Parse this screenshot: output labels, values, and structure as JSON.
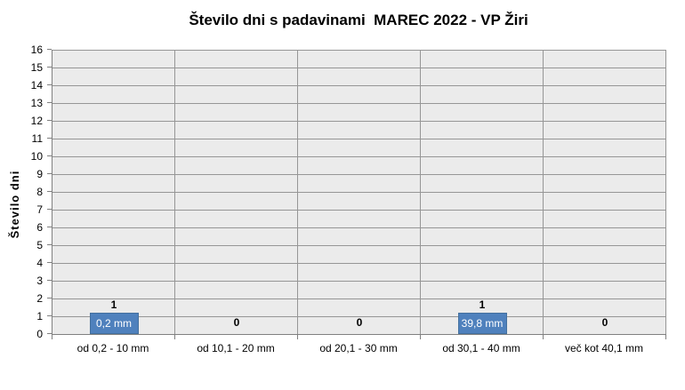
{
  "chart_data": {
    "type": "bar",
    "title": "Število dni s padavinami  MAREC 2022 - VP Žiri",
    "ylabel": "Število dni",
    "xlabel": "",
    "categories": [
      "od 0,2 - 10 mm",
      "od 10,1 - 20 mm",
      "od 20,1 - 30 mm",
      "od 30,1 - 40 mm",
      "več kot 40,1 mm"
    ],
    "values": [
      1,
      0,
      0,
      1,
      0
    ],
    "value_labels": [
      "1",
      "0",
      "0",
      "1",
      "0"
    ],
    "bar_amount_labels": [
      "0,2 mm",
      "",
      "",
      "39,8 mm",
      ""
    ],
    "ylim": [
      0,
      16
    ],
    "ytick_step": 1,
    "grid": "on",
    "legend": "none",
    "colors": {
      "bar_fill": "#4F81BD",
      "bar_border": "#44719F",
      "bar_label_text": "#FFFFFF",
      "plot_background": "#EBEBEB",
      "gridline": "#969696",
      "axis_line": "#808080",
      "text": "#000000",
      "page_background": "#FFFFFF"
    }
  }
}
